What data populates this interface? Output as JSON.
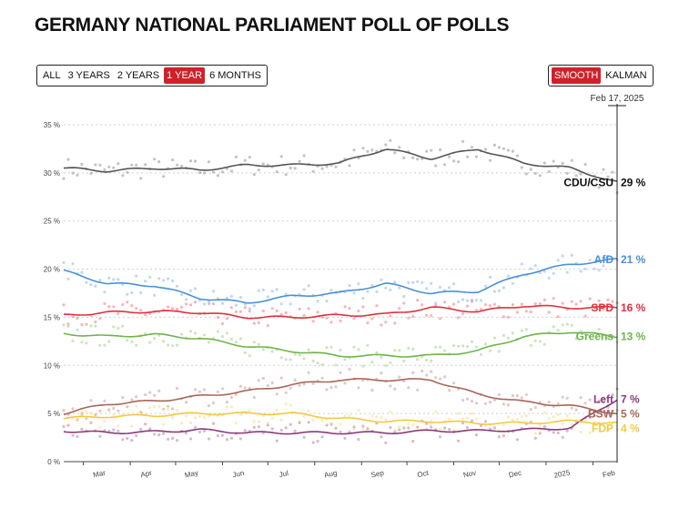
{
  "title": "GERMANY NATIONAL PARLIAMENT POLL OF POLLS",
  "range_buttons": [
    {
      "label": "ALL",
      "active": false
    },
    {
      "label": "3 YEARS",
      "active": false
    },
    {
      "label": "2 YEARS",
      "active": false
    },
    {
      "label": "1 YEAR",
      "active": true
    },
    {
      "label": "6 MONTHS",
      "active": false
    }
  ],
  "mode_buttons": [
    {
      "label": "SMOOTH",
      "active": true
    },
    {
      "label": "KALMAN",
      "active": false
    }
  ],
  "cursor_date": "Feb 17, 2025",
  "chart_data": {
    "type": "line",
    "title": "GERMANY NATIONAL PARLIAMENT POLL OF POLLS",
    "xlabel": "",
    "ylabel": "",
    "ylim": [
      0,
      35
    ],
    "y_ticks": [
      "0 %",
      "5 %",
      "10 %",
      "15 %",
      "20 %",
      "25 %",
      "30 %",
      "35 %"
    ],
    "x_ticks": [
      "Mar",
      "Apr",
      "May",
      "Jun",
      "Jul",
      "Aug",
      "Sep",
      "Oct",
      "Nov",
      "Dec",
      "2025",
      "Feb"
    ],
    "x": [
      "2024-02-17",
      "2024-03-17",
      "2024-04-17",
      "2024-05-17",
      "2024-06-17",
      "2024-07-17",
      "2024-08-17",
      "2024-09-17",
      "2024-10-17",
      "2024-11-17",
      "2024-12-17",
      "2025-01-17",
      "2025-02-17"
    ],
    "grid": true,
    "series": [
      {
        "name": "CDU/CSU",
        "label": "29 %",
        "color": "#555555",
        "values": [
          30.5,
          30.2,
          30.5,
          30.3,
          30.8,
          30.8,
          31.0,
          32.5,
          31.5,
          32.5,
          31.0,
          30.5,
          29.0
        ]
      },
      {
        "name": "AfD",
        "label": "21 %",
        "color": "#4a90d9",
        "values": [
          19.8,
          18.5,
          18.3,
          17.0,
          16.5,
          17.2,
          17.5,
          18.5,
          17.5,
          17.7,
          19.5,
          20.5,
          21.0
        ]
      },
      {
        "name": "SPD",
        "label": "16 %",
        "color": "#e0303c",
        "values": [
          15.2,
          15.5,
          15.6,
          15.5,
          15.0,
          15.0,
          15.2,
          15.3,
          16.0,
          15.6,
          16.2,
          16.0,
          16.0
        ]
      },
      {
        "name": "Greens",
        "label": "13 %",
        "color": "#6cb548",
        "values": [
          13.3,
          13.0,
          13.2,
          12.8,
          12.0,
          11.5,
          11.0,
          11.0,
          11.0,
          11.5,
          13.0,
          13.5,
          13.0
        ]
      },
      {
        "name": "Left",
        "label": "7 %",
        "color": "#8b3a78",
        "values": [
          3.2,
          3.0,
          3.1,
          3.3,
          3.0,
          3.0,
          3.0,
          3.0,
          3.2,
          3.2,
          3.3,
          3.5,
          6.5
        ]
      },
      {
        "name": "BSW",
        "label": "5 %",
        "color": "#a8655a",
        "values": [
          5.0,
          6.0,
          6.3,
          6.8,
          7.3,
          8.0,
          8.5,
          8.5,
          8.5,
          7.0,
          6.2,
          5.8,
          5.0
        ]
      },
      {
        "name": "FDP",
        "label": "4 %",
        "color": "#f5c842",
        "values": [
          4.5,
          4.7,
          4.8,
          5.0,
          5.0,
          5.0,
          4.5,
          4.2,
          4.2,
          4.0,
          4.0,
          4.2,
          4.0
        ]
      }
    ]
  }
}
